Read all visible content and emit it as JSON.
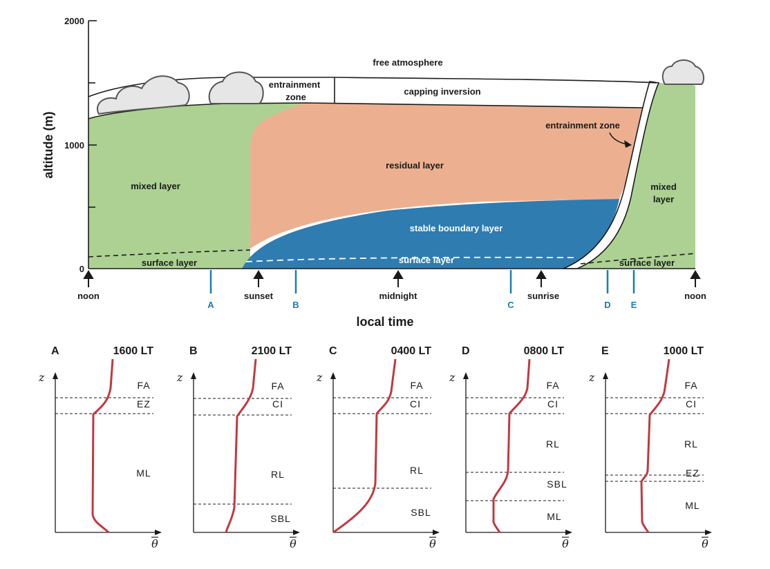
{
  "top": {
    "y_axis_label": "altitude (m)",
    "x_axis_label": "local time",
    "y_ticks": [
      "0",
      "1000",
      "2000"
    ],
    "regions": {
      "free_atmosphere": "free atmosphere",
      "entrainment_zone_1": "entrainment",
      "entrainment_zone_2": "zone",
      "capping_inversion": "capping inversion",
      "entrainment_zone_right": "entrainment zone",
      "residual_layer": "residual layer",
      "mixed_layer_left": "mixed layer",
      "mixed_layer_right_1": "mixed",
      "mixed_layer_right_2": "layer",
      "stable_boundary_layer": "stable boundary layer",
      "surface_layer_left": "surface layer",
      "surface_layer_mid": "surface layer",
      "surface_layer_right": "surface layer"
    },
    "times": {
      "noon_left": "noon",
      "sunset": "sunset",
      "midnight": "midnight",
      "sunrise": "sunrise",
      "noon_right": "noon"
    },
    "markers": [
      "A",
      "B",
      "C",
      "D",
      "E"
    ],
    "colors": {
      "mixed": "#acd193",
      "residual": "#ecb091",
      "stable": "#2f7cb1",
      "marker": "#1b7cb3",
      "profile": "#c0393f"
    }
  },
  "profiles": [
    {
      "letter": "A",
      "time": "1600 LT",
      "layers": [
        "FA",
        "EZ",
        "ML"
      ]
    },
    {
      "letter": "B",
      "time": "2100 LT",
      "layers": [
        "FA",
        "CI",
        "RL",
        "SBL"
      ]
    },
    {
      "letter": "C",
      "time": "0400 LT",
      "layers": [
        "FA",
        "CI",
        "RL",
        "SBL"
      ]
    },
    {
      "letter": "D",
      "time": "0800 LT",
      "layers": [
        "FA",
        "CI",
        "RL",
        "SBL",
        "ML"
      ]
    },
    {
      "letter": "E",
      "time": "1000 LT",
      "layers": [
        "FA",
        "CI",
        "RL",
        "EZ",
        "ML"
      ]
    }
  ],
  "profile_axes": {
    "y": "z",
    "x": "θ"
  }
}
